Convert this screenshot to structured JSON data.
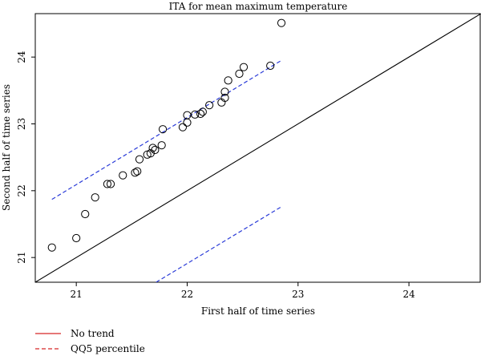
{
  "chart_data": {
    "type": "scatter",
    "title": "ITA for mean maximum temperature",
    "xlabel": "First half of time series",
    "ylabel": "Second half of time series",
    "xlim": [
      20.63,
      24.65
    ],
    "ylim": [
      20.63,
      24.65
    ],
    "xticks": [
      21,
      22,
      23,
      24
    ],
    "yticks": [
      21,
      22,
      23,
      24
    ],
    "grid": false,
    "legend_position": "bottom-left",
    "legend": [
      {
        "label": "No trend",
        "style": "solid",
        "color": "#d62728"
      },
      {
        "label": "QQ5 percentile",
        "style": "dashed",
        "color": "#d62728"
      }
    ],
    "series": [
      {
        "kind": "points",
        "color": "#000000",
        "x": [
          20.78,
          21.0,
          21.08,
          21.17,
          21.28,
          21.31,
          21.42,
          21.53,
          21.55,
          21.57,
          21.64,
          21.67,
          21.69,
          21.71,
          21.77,
          21.78,
          21.96,
          22.0,
          22.0,
          22.07,
          22.12,
          22.14,
          22.2,
          22.31,
          22.34,
          22.34,
          22.37,
          22.47,
          22.51,
          22.75,
          22.85
        ],
        "y": [
          21.15,
          21.29,
          21.65,
          21.9,
          22.1,
          22.1,
          22.23,
          22.27,
          22.29,
          22.47,
          22.54,
          22.56,
          22.64,
          22.61,
          22.68,
          22.92,
          22.95,
          23.02,
          23.13,
          23.14,
          23.15,
          23.18,
          23.28,
          23.32,
          23.39,
          23.48,
          23.65,
          23.75,
          23.85,
          23.87,
          24.51
        ]
      }
    ],
    "lines": [
      {
        "kind": "no-trend",
        "style": "solid",
        "color": "#000000",
        "x": [
          20.63,
          24.65
        ],
        "y": [
          20.63,
          24.65
        ]
      },
      {
        "kind": "upper-qq5",
        "style": "dashed",
        "color": "#2a3bd8",
        "x": [
          20.78,
          22.85
        ],
        "y": [
          21.87,
          23.95
        ]
      },
      {
        "kind": "lower-qq5",
        "style": "dashed",
        "color": "#2a3bd8",
        "x": [
          21.72,
          22.85
        ],
        "y": [
          20.63,
          21.76
        ]
      }
    ]
  }
}
